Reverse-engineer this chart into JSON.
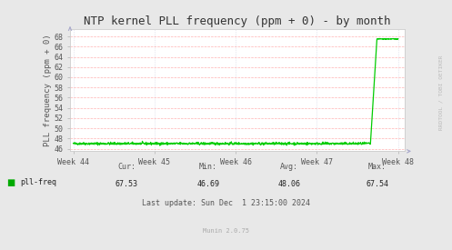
{
  "title": "NTP kernel PLL frequency (ppm + 0) - by month",
  "ylabel": "PLL frequency (ppm + 0)",
  "background_color": "#e8e8e8",
  "plot_bg_color": "#ffffff",
  "line_color": "#00cc00",
  "grid_color_h": "#ffcccc",
  "grid_color_v": "#ddddee",
  "axis_arrow_color": "#aaaacc",
  "ylim": [
    45.5,
    69.5
  ],
  "yticks": [
    46,
    48,
    50,
    52,
    54,
    56,
    58,
    60,
    62,
    64,
    66,
    68
  ],
  "xtick_labels": [
    "Week 44",
    "Week 45",
    "Week 46",
    "Week 47",
    "Week 48"
  ],
  "stats_cur": "67.53",
  "stats_min": "46.69",
  "stats_avg": "48.06",
  "stats_max": "67.54",
  "legend_label": "pll-freq",
  "legend_color": "#00aa00",
  "watermark": "Munin 2.0.75",
  "last_update": "Last update: Sun Dec  1 23:15:00 2024",
  "rrdtool_text": "RRDTOOL / TOBI OETIKER",
  "title_fontsize": 9,
  "axis_label_fontsize": 6.5,
  "tick_fontsize": 6,
  "stats_fontsize": 6,
  "watermark_fontsize": 5,
  "rrdtool_fontsize": 4.5
}
